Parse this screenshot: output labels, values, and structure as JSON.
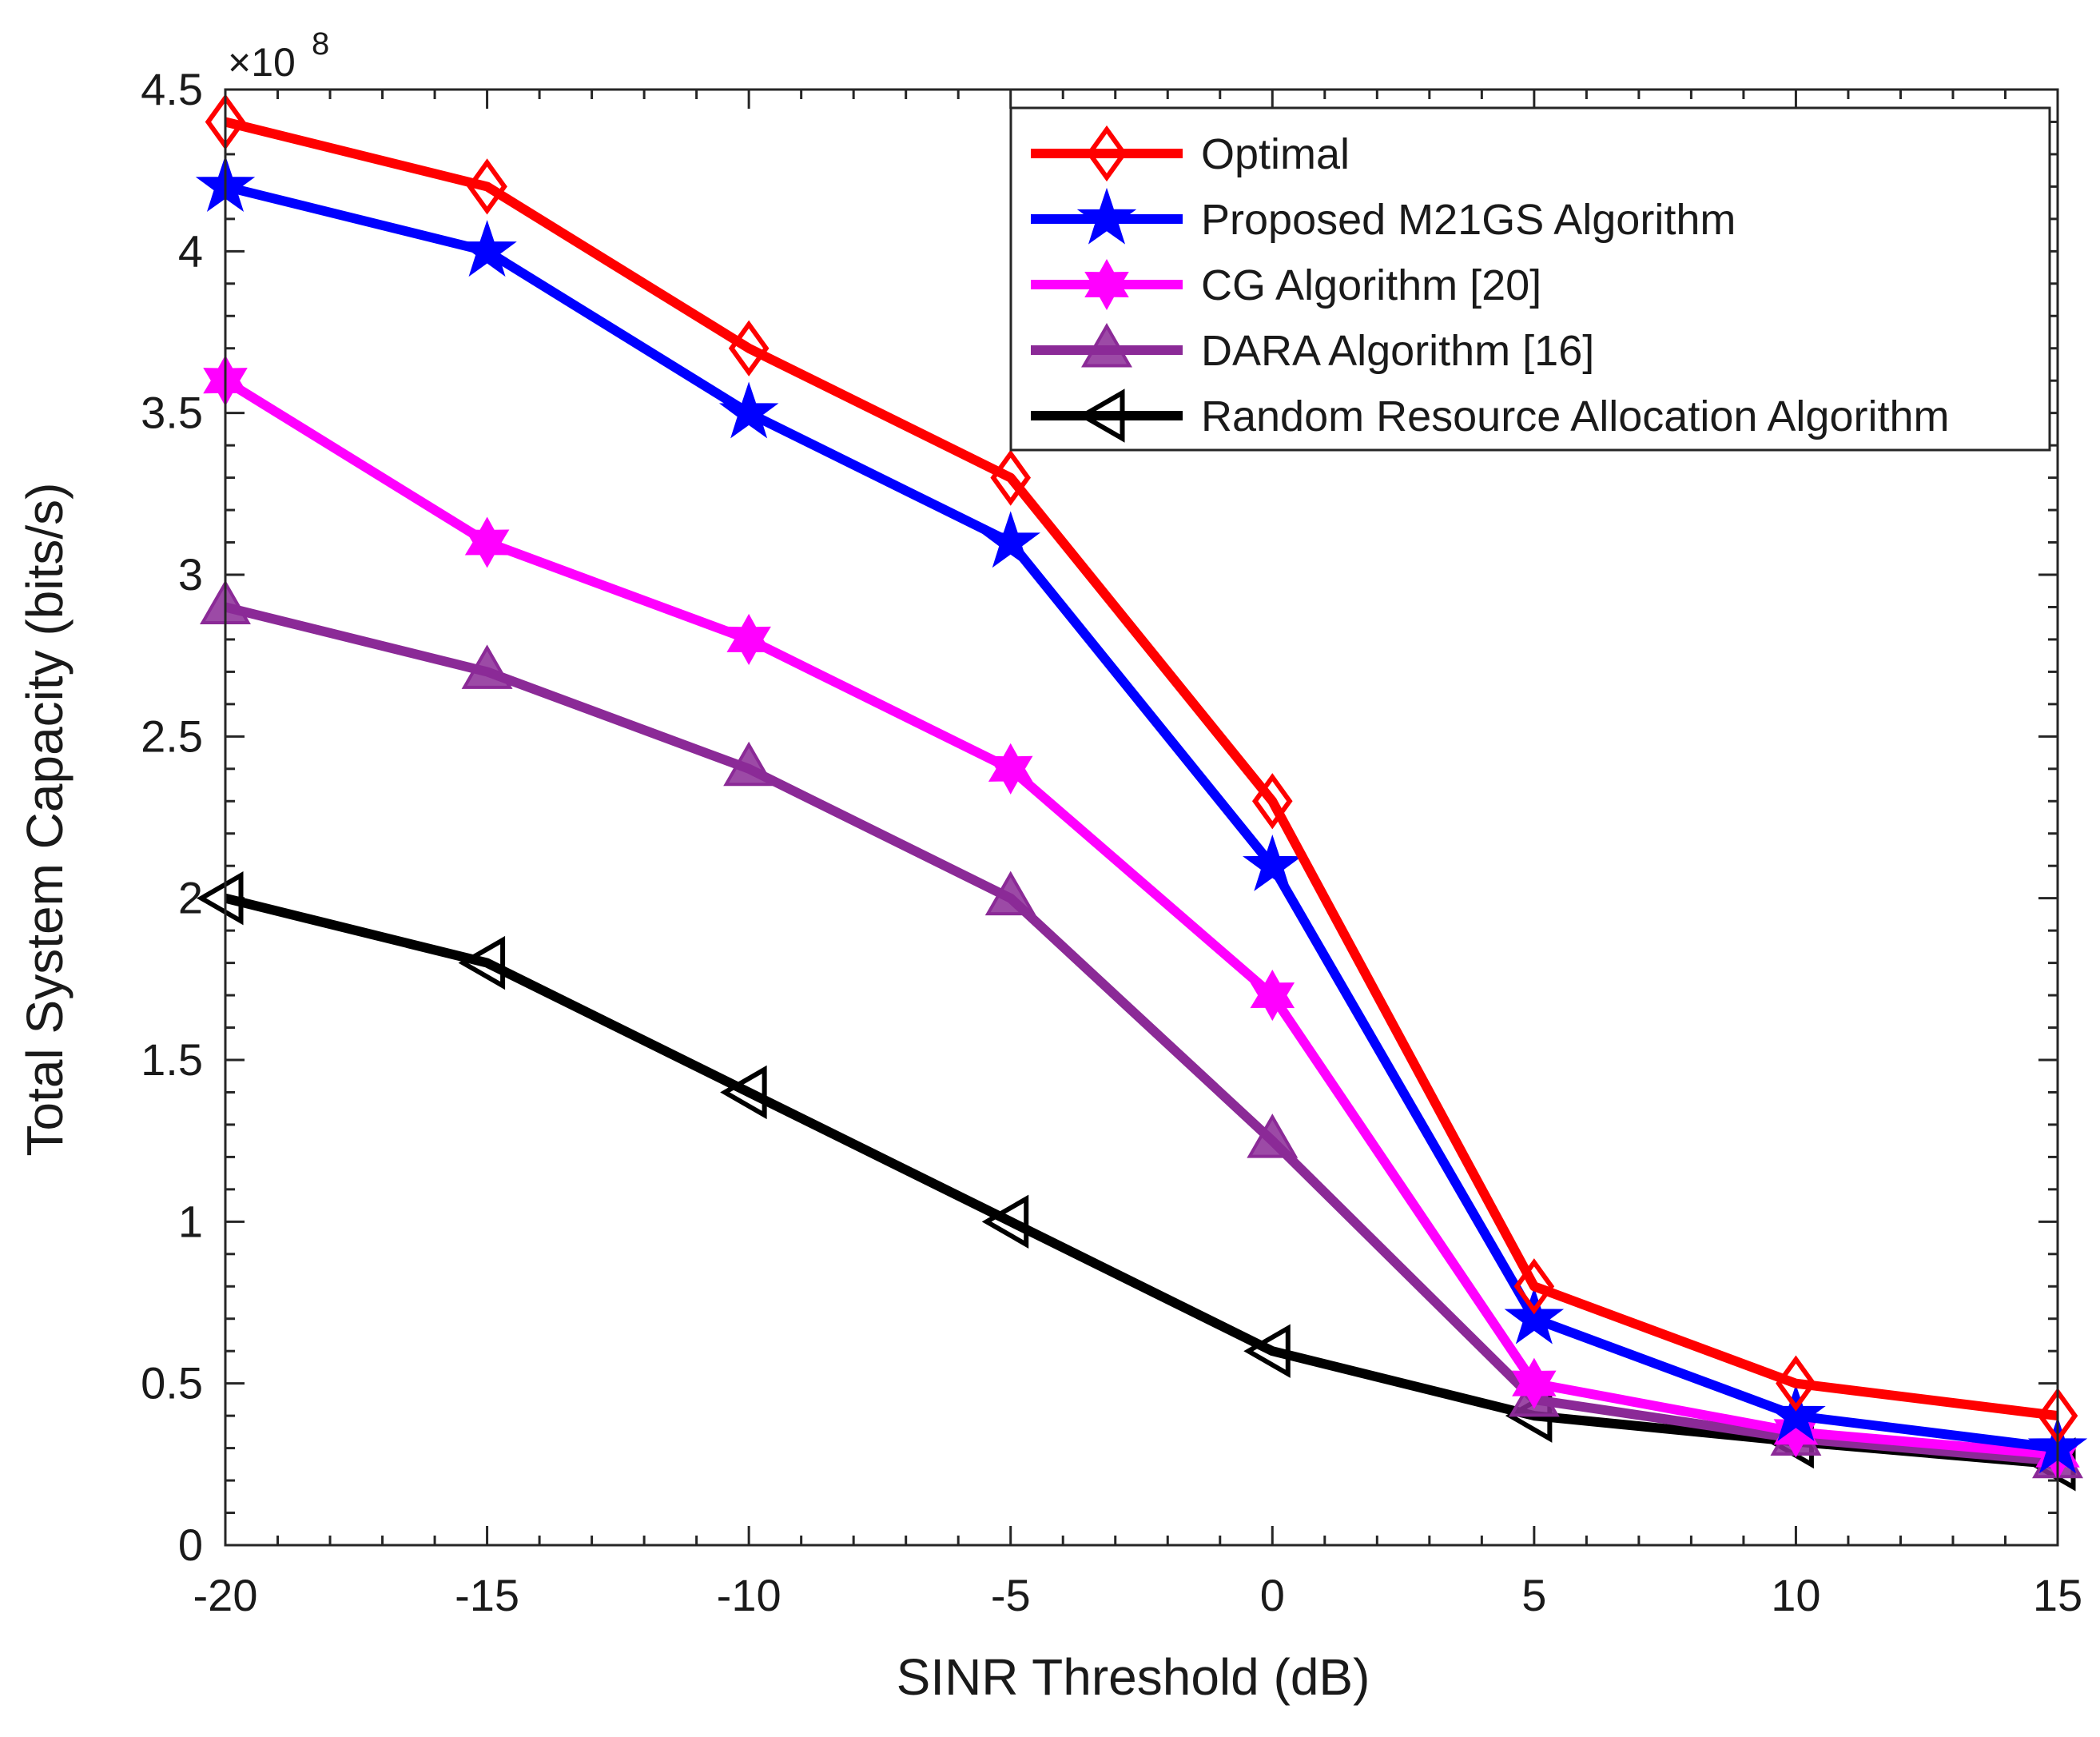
{
  "chart_data": {
    "type": "line",
    "title": "",
    "xlabel": "SINR Threshold (dB)",
    "ylabel": "Total System Capacity (bits/s)",
    "y_multiplier_label": "×10",
    "y_multiplier_exponent": "8",
    "xlim": [
      -20,
      15
    ],
    "ylim": [
      0,
      4.5
    ],
    "x_ticks": [
      -20,
      -15,
      -10,
      -5,
      0,
      5,
      10,
      15
    ],
    "x_tick_labels": [
      "-20",
      "-15",
      "-10",
      "-5",
      "0",
      "5",
      "10",
      "15"
    ],
    "y_ticks": [
      0,
      0.5,
      1,
      1.5,
      2,
      2.5,
      3,
      3.5,
      4,
      4.5
    ],
    "y_tick_labels": [
      "0",
      "0.5",
      "1",
      "1.5",
      "2",
      "2.5",
      "3",
      "3.5",
      "4",
      "4.5"
    ],
    "grid": false,
    "legend_position": "top-right",
    "x": [
      -20,
      -15,
      -10,
      -5,
      0,
      5,
      10,
      15
    ],
    "series": [
      {
        "name": "Optimal",
        "color": "#ff0000",
        "marker": "diamond",
        "values": [
          4.4,
          4.2,
          3.7,
          3.3,
          2.3,
          0.8,
          0.5,
          0.4
        ]
      },
      {
        "name": "Proposed M21GS Algorithm",
        "color": "#0000ff",
        "marker": "star",
        "values": [
          4.2,
          4.0,
          3.5,
          3.1,
          2.1,
          0.7,
          0.4,
          0.3
        ]
      },
      {
        "name": "CG Algorithm [20]",
        "color": "#ff00ff",
        "marker": "hexagram",
        "values": [
          3.6,
          3.1,
          2.8,
          2.4,
          1.7,
          0.5,
          0.35,
          0.28
        ]
      },
      {
        "name": "DARA Algorithm [16]",
        "color": "#8b2a97",
        "marker": "triangle-up",
        "values": [
          2.9,
          2.7,
          2.4,
          2.0,
          1.25,
          0.45,
          0.33,
          0.26
        ]
      },
      {
        "name": "Random Resource Allocation Algorithm",
        "color": "#000000",
        "marker": "triangle-left",
        "values": [
          2.0,
          1.8,
          1.4,
          1.0,
          0.6,
          0.4,
          0.32,
          0.25
        ]
      }
    ]
  }
}
